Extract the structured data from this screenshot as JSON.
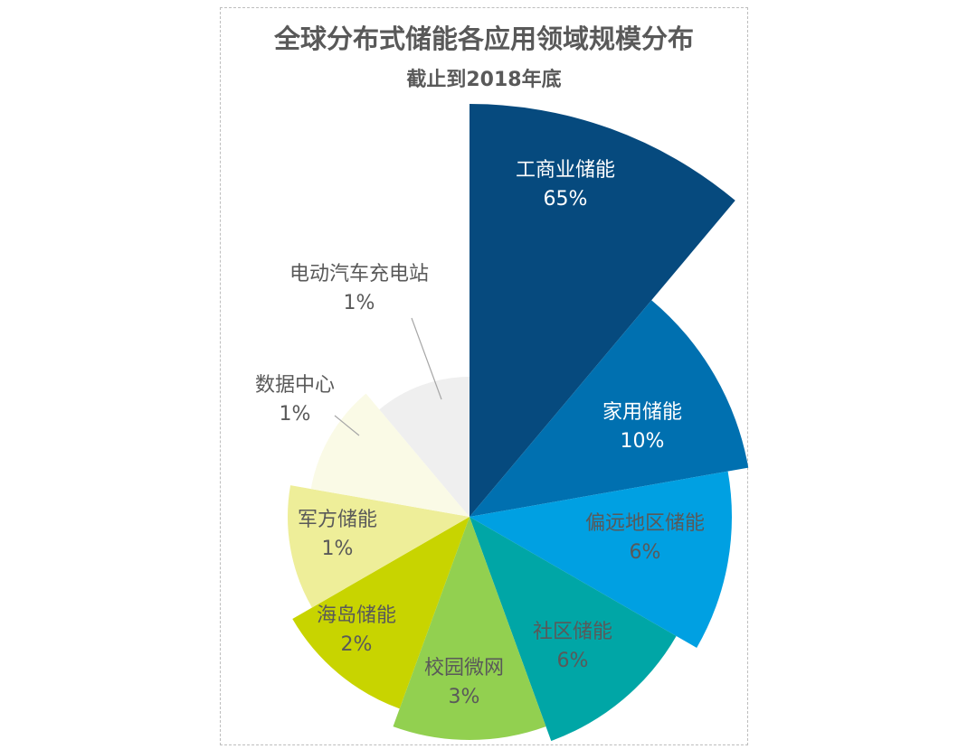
{
  "chart_data": {
    "type": "pie",
    "variant": "rose",
    "title": "全球分布式储能各应用领域规模分布",
    "subtitle": "截止到2018年底",
    "categories": [
      "工商业储能",
      "家用储能",
      "偏远地区储能",
      "社区储能",
      "校园微网",
      "海岛储能",
      "军方储能",
      "数据中心",
      "电动汽车充电站"
    ],
    "values": [
      65,
      10,
      6,
      6,
      3,
      2,
      1,
      1,
      1
    ],
    "value_labels": [
      "65%",
      "10%",
      "6%",
      "6%",
      "3%",
      "2%",
      "1%",
      "1%",
      "1%"
    ],
    "colors": [
      "#064a7e",
      "#0070b0",
      "#00a0e2",
      "#00a6a6",
      "#92d050",
      "#c8d400",
      "#eeee99",
      "#fafae6",
      "#efefef"
    ],
    "label_colors": [
      "#ffffff",
      "#ffffff",
      "#595959",
      "#595959",
      "#595959",
      "#595959",
      "#595959",
      "#595959",
      "#595959"
    ],
    "legend": "none"
  }
}
